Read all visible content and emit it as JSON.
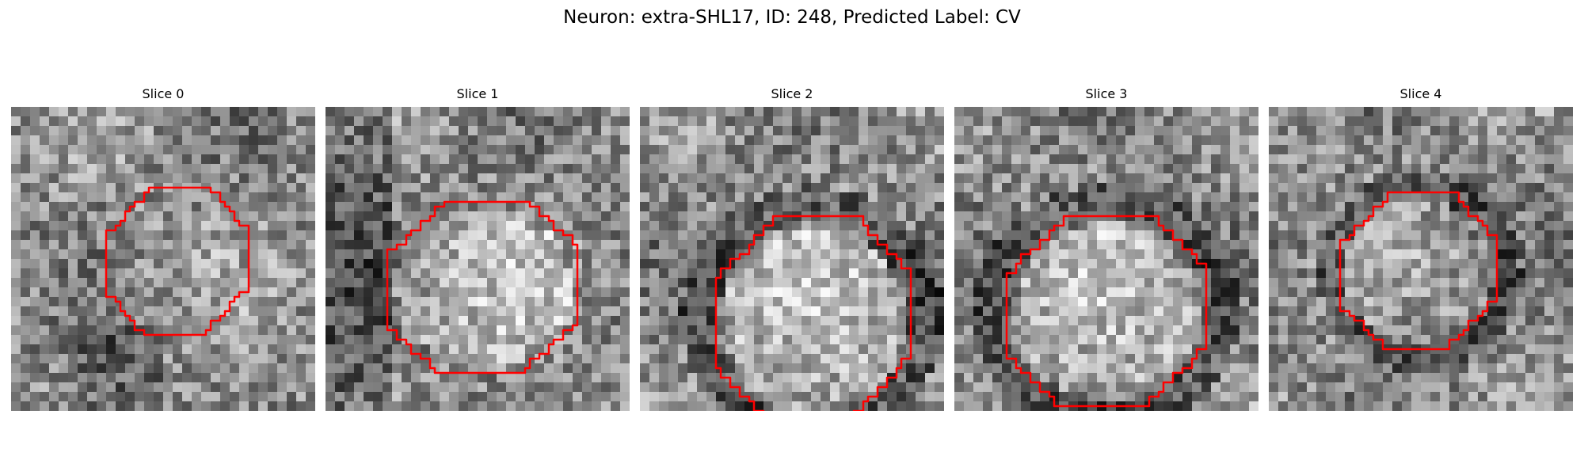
{
  "figure": {
    "title": "Neuron: extra-SHL17, ID: 248, Predicted Label: CV"
  },
  "style": {
    "contour_color": "#ff0000",
    "colormap": "grayscale"
  },
  "slices": [
    {
      "label": "Slice 0",
      "seed": 11,
      "bright_interior": false,
      "dark_ring": false
    },
    {
      "label": "Slice 1",
      "seed": 23,
      "bright_interior": true,
      "dark_ring": false
    },
    {
      "label": "Slice 2",
      "seed": 37,
      "bright_interior": true,
      "dark_ring": true
    },
    {
      "label": "Slice 3",
      "seed": 53,
      "bright_interior": true,
      "dark_ring": true
    },
    {
      "label": "Slice 4",
      "seed": 71,
      "bright_interior": false,
      "dark_ring": true
    }
  ]
}
